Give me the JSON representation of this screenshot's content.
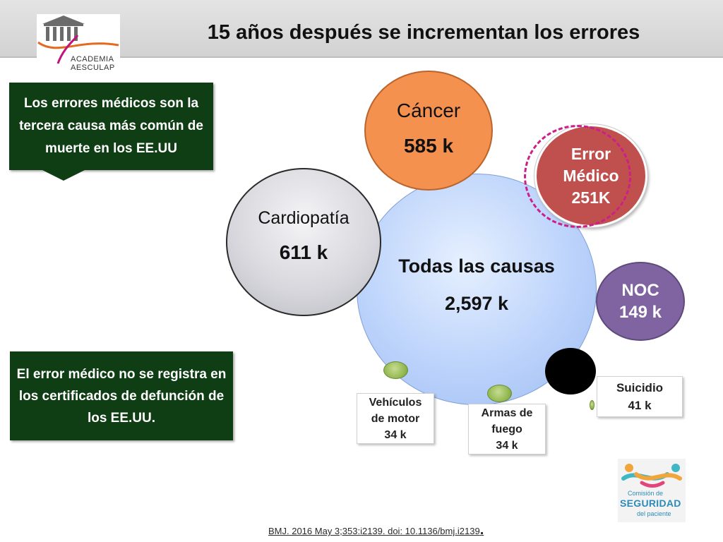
{
  "title": "15 años después  se incrementan los errores",
  "logo_left": {
    "line1": "ACADEMIA",
    "line2": "AESCULAP",
    "icon": "columns-building-icon"
  },
  "notes": {
    "top": "Los errores médicos son la tercera causa más común de muerte en los EE.UU",
    "bottom": "El error médico no se registra en los certificados de defunción de los EE.UU."
  },
  "bubbles": {
    "todas": {
      "label": "Todas las causas",
      "value": "2,597 k"
    },
    "cardiopatia": {
      "label": "Cardiopatía",
      "value": "611 k"
    },
    "cancer": {
      "label": "Cáncer",
      "value": "585 k"
    },
    "error": {
      "line1": "Error",
      "line2": "Médico",
      "line3": "251K"
    },
    "noc": {
      "label": "NOC",
      "value": "149 k"
    }
  },
  "small_labels": {
    "vehiculos": {
      "line1": "Vehículos",
      "line2": "de motor",
      "value": "34 k"
    },
    "armas": {
      "line1": "Armas de",
      "line2": "fuego",
      "value": "34 k"
    },
    "suicidio": {
      "label": "Suicidio",
      "value": "41 k"
    }
  },
  "logo_right": {
    "line1": "Comisión de",
    "line2": "SEGURIDAD",
    "line3": "del paciente",
    "icon": "people-linked-icon"
  },
  "citation": {
    "text": "BMJ. 2016 May 3;353:i2139. doi: 10.1136/bmj.i2139",
    "end": "."
  },
  "colors": {
    "todas": "#bcd3fb",
    "cardiopatia": "#d6d6dc",
    "cancer": "#f5914e",
    "error": "#c0504d",
    "noc": "#8064a2",
    "note_bg": "#0f3d14",
    "dashed_ring": "#cc1f8a"
  }
}
